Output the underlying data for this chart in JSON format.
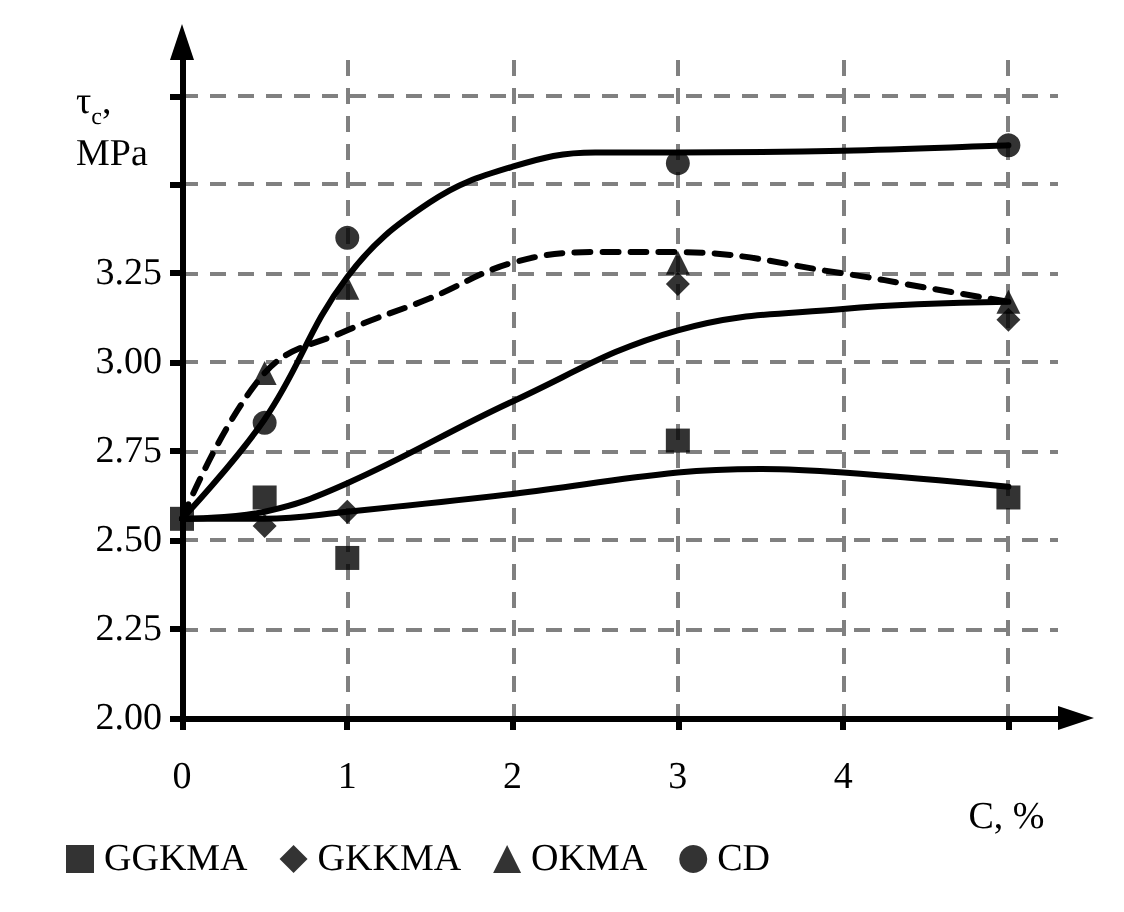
{
  "chart_data": {
    "type": "scatter",
    "ylabel": "τ$_{c}$, MPa",
    "xlabel": "C, %",
    "xlim": [
      0,
      5.3
    ],
    "xticks": [
      0,
      1,
      2,
      3,
      4,
      {
        "value": 5,
        "label": null
      }
    ],
    "ylim": [
      2.0,
      3.85
    ],
    "yticks": [
      {
        "value": 2.0,
        "label": "2.00"
      },
      2.25,
      {
        "value": 2.5,
        "label": "2.50"
      },
      2.75,
      {
        "value": 3.0,
        "label": "3.00"
      },
      3.25,
      {
        "value": 3.5,
        "label": null
      },
      {
        "value": 3.75,
        "label": null
      }
    ],
    "grid": true,
    "legend": "bottom",
    "series": [
      {
        "name": "GGKMA",
        "color": "#000000",
        "marker": "square",
        "x": [
          0,
          0.5,
          1,
          3,
          5
        ],
        "values": [
          2.56,
          2.62,
          2.45,
          2.78,
          2.62
        ]
      },
      {
        "name": "GKKMA",
        "color": "#000000",
        "marker": "diamond",
        "x": [
          0.5,
          1,
          3,
          5
        ],
        "values": [
          2.54,
          2.58,
          3.22,
          3.12
        ]
      },
      {
        "name": "OKMA",
        "color": "#000000",
        "marker": "triangle",
        "x": [
          0.5,
          1,
          3,
          5
        ],
        "values": [
          2.97,
          3.21,
          3.28,
          3.17
        ]
      },
      {
        "name": "CD",
        "color": "#000000",
        "marker": "circle",
        "x": [
          0.5,
          1,
          3,
          5
        ],
        "values": [
          2.83,
          3.35,
          3.56,
          3.61
        ]
      },
      {
        "type": "line",
        "color": "#000000",
        "marker": "none",
        "line_style": "solid",
        "x": [
          0,
          0.5,
          1,
          2,
          3,
          3.5,
          4,
          5
        ],
        "values": [
          2.56,
          2.56,
          2.58,
          2.63,
          2.69,
          2.7,
          2.69,
          2.65
        ]
      },
      {
        "type": "line",
        "color": "#000000",
        "marker": "none",
        "line_style": "solid",
        "x": [
          0,
          0.5,
          1,
          2,
          3,
          4,
          5
        ],
        "values": [
          2.56,
          2.58,
          2.66,
          2.89,
          3.09,
          3.15,
          3.17
        ]
      },
      {
        "type": "line",
        "color": "#000000",
        "marker": "none",
        "line_style": "dashed",
        "x": [
          0,
          0.5,
          1,
          1.5,
          2,
          2.5,
          3,
          4,
          4.5,
          5
        ],
        "values": [
          2.56,
          2.97,
          3.09,
          3.18,
          3.28,
          3.31,
          3.31,
          3.25,
          3.21,
          3.17
        ]
      },
      {
        "type": "line",
        "color": "#000000",
        "marker": "none",
        "line_style": "solid",
        "x": [
          0,
          0.5,
          1,
          1.5,
          2,
          2.5,
          3,
          4,
          5
        ],
        "values": [
          2.56,
          2.84,
          3.24,
          3.45,
          3.55,
          3.59,
          3.59,
          3.595,
          3.61
        ]
      }
    ]
  }
}
